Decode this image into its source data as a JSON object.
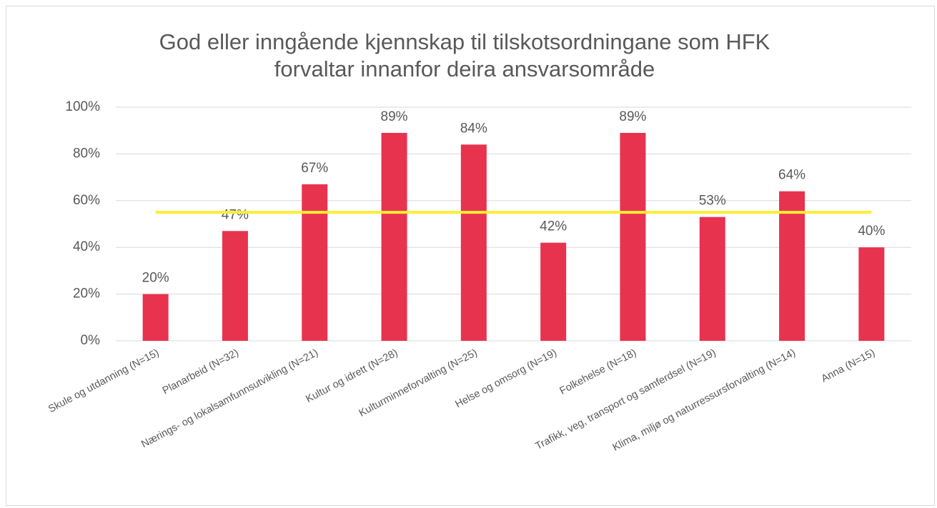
{
  "chart_data": {
    "type": "bar",
    "title": "God eller inngående kjennskap til tilskotsordningane som HFK forvaltar innanfor deira ansvarsområde",
    "categories": [
      "Skule og utdanning (N=15)",
      "Planarbeid  (N=32)",
      "Nærings- og lokalsamfunnsutvikling  (N=21)",
      "Kultur og idrett (N=28)",
      "Kulturminneforvalting  (N=25)",
      "Helse og omsorg (N=19)",
      "Folkehelse (N=18)",
      "Trafikk, veg, transport og samferdsel  (N=19)",
      "Klima, miljø og naturressursforvalting (N=14)",
      "Anna (N=15)"
    ],
    "series": [
      {
        "type": "bar",
        "color": "#e8334f",
        "values": [
          20,
          47,
          67,
          89,
          84,
          42,
          89,
          53,
          64,
          40
        ],
        "value_labels": [
          "20%",
          "47%",
          "67%",
          "89%",
          "84%",
          "42%",
          "89%",
          "53%",
          "64%",
          "40%"
        ]
      },
      {
        "type": "line",
        "color": "#ffee33",
        "values": [
          55,
          55,
          55,
          55,
          55,
          55,
          55,
          55,
          55,
          55
        ]
      }
    ],
    "ylim": [
      0,
      100
    ],
    "yticks": [
      {
        "value": 0,
        "label": "0%"
      },
      {
        "value": 20,
        "label": "20%"
      },
      {
        "value": 40,
        "label": "40%"
      },
      {
        "value": 60,
        "label": "60%"
      },
      {
        "value": 80,
        "label": "80%"
      },
      {
        "value": 100,
        "label": "100%"
      }
    ],
    "grid": true
  }
}
